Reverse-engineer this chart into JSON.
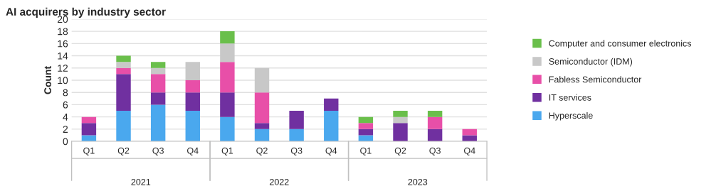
{
  "chart_data": {
    "type": "bar",
    "title": "AI acquirers by industry sector",
    "ylabel": "Count",
    "stacked": true,
    "categories": [
      "Q1",
      "Q2",
      "Q3",
      "Q4",
      "Q1",
      "Q2",
      "Q3",
      "Q4",
      "Q1",
      "Q2",
      "Q3",
      "Q4"
    ],
    "annotations": [
      "2021",
      "2022",
      "2023"
    ],
    "series": [
      {
        "name": "Hyperscale",
        "color": "#4aa8ee",
        "values": [
          1,
          5,
          6,
          5,
          4,
          2,
          2,
          5,
          1,
          0,
          0,
          0
        ]
      },
      {
        "name": "IT services",
        "color": "#7030a0",
        "values": [
          2,
          6,
          2,
          3,
          4,
          1,
          3,
          2,
          1,
          3,
          2,
          1
        ]
      },
      {
        "name": "Fabless Semiconductor",
        "color": "#e84fa8",
        "values": [
          1,
          1,
          3,
          2,
          5,
          5,
          0,
          0,
          1,
          0,
          2,
          1
        ]
      },
      {
        "name": "Semiconductor (IDM)",
        "color": "#c8c8c8",
        "values": [
          0,
          1,
          1,
          3,
          3,
          4,
          0,
          0,
          0,
          1,
          0,
          0
        ]
      },
      {
        "name": "Computer and consumer electronics",
        "color": "#6abf4b",
        "values": [
          0,
          1,
          1,
          0,
          2,
          0,
          0,
          0,
          1,
          1,
          1,
          0
        ]
      }
    ],
    "ylim": [
      0,
      20
    ],
    "yticks": [
      0,
      2,
      4,
      6,
      8,
      10,
      12,
      14,
      16,
      18,
      20
    ],
    "grid": "y",
    "legend": "right"
  }
}
